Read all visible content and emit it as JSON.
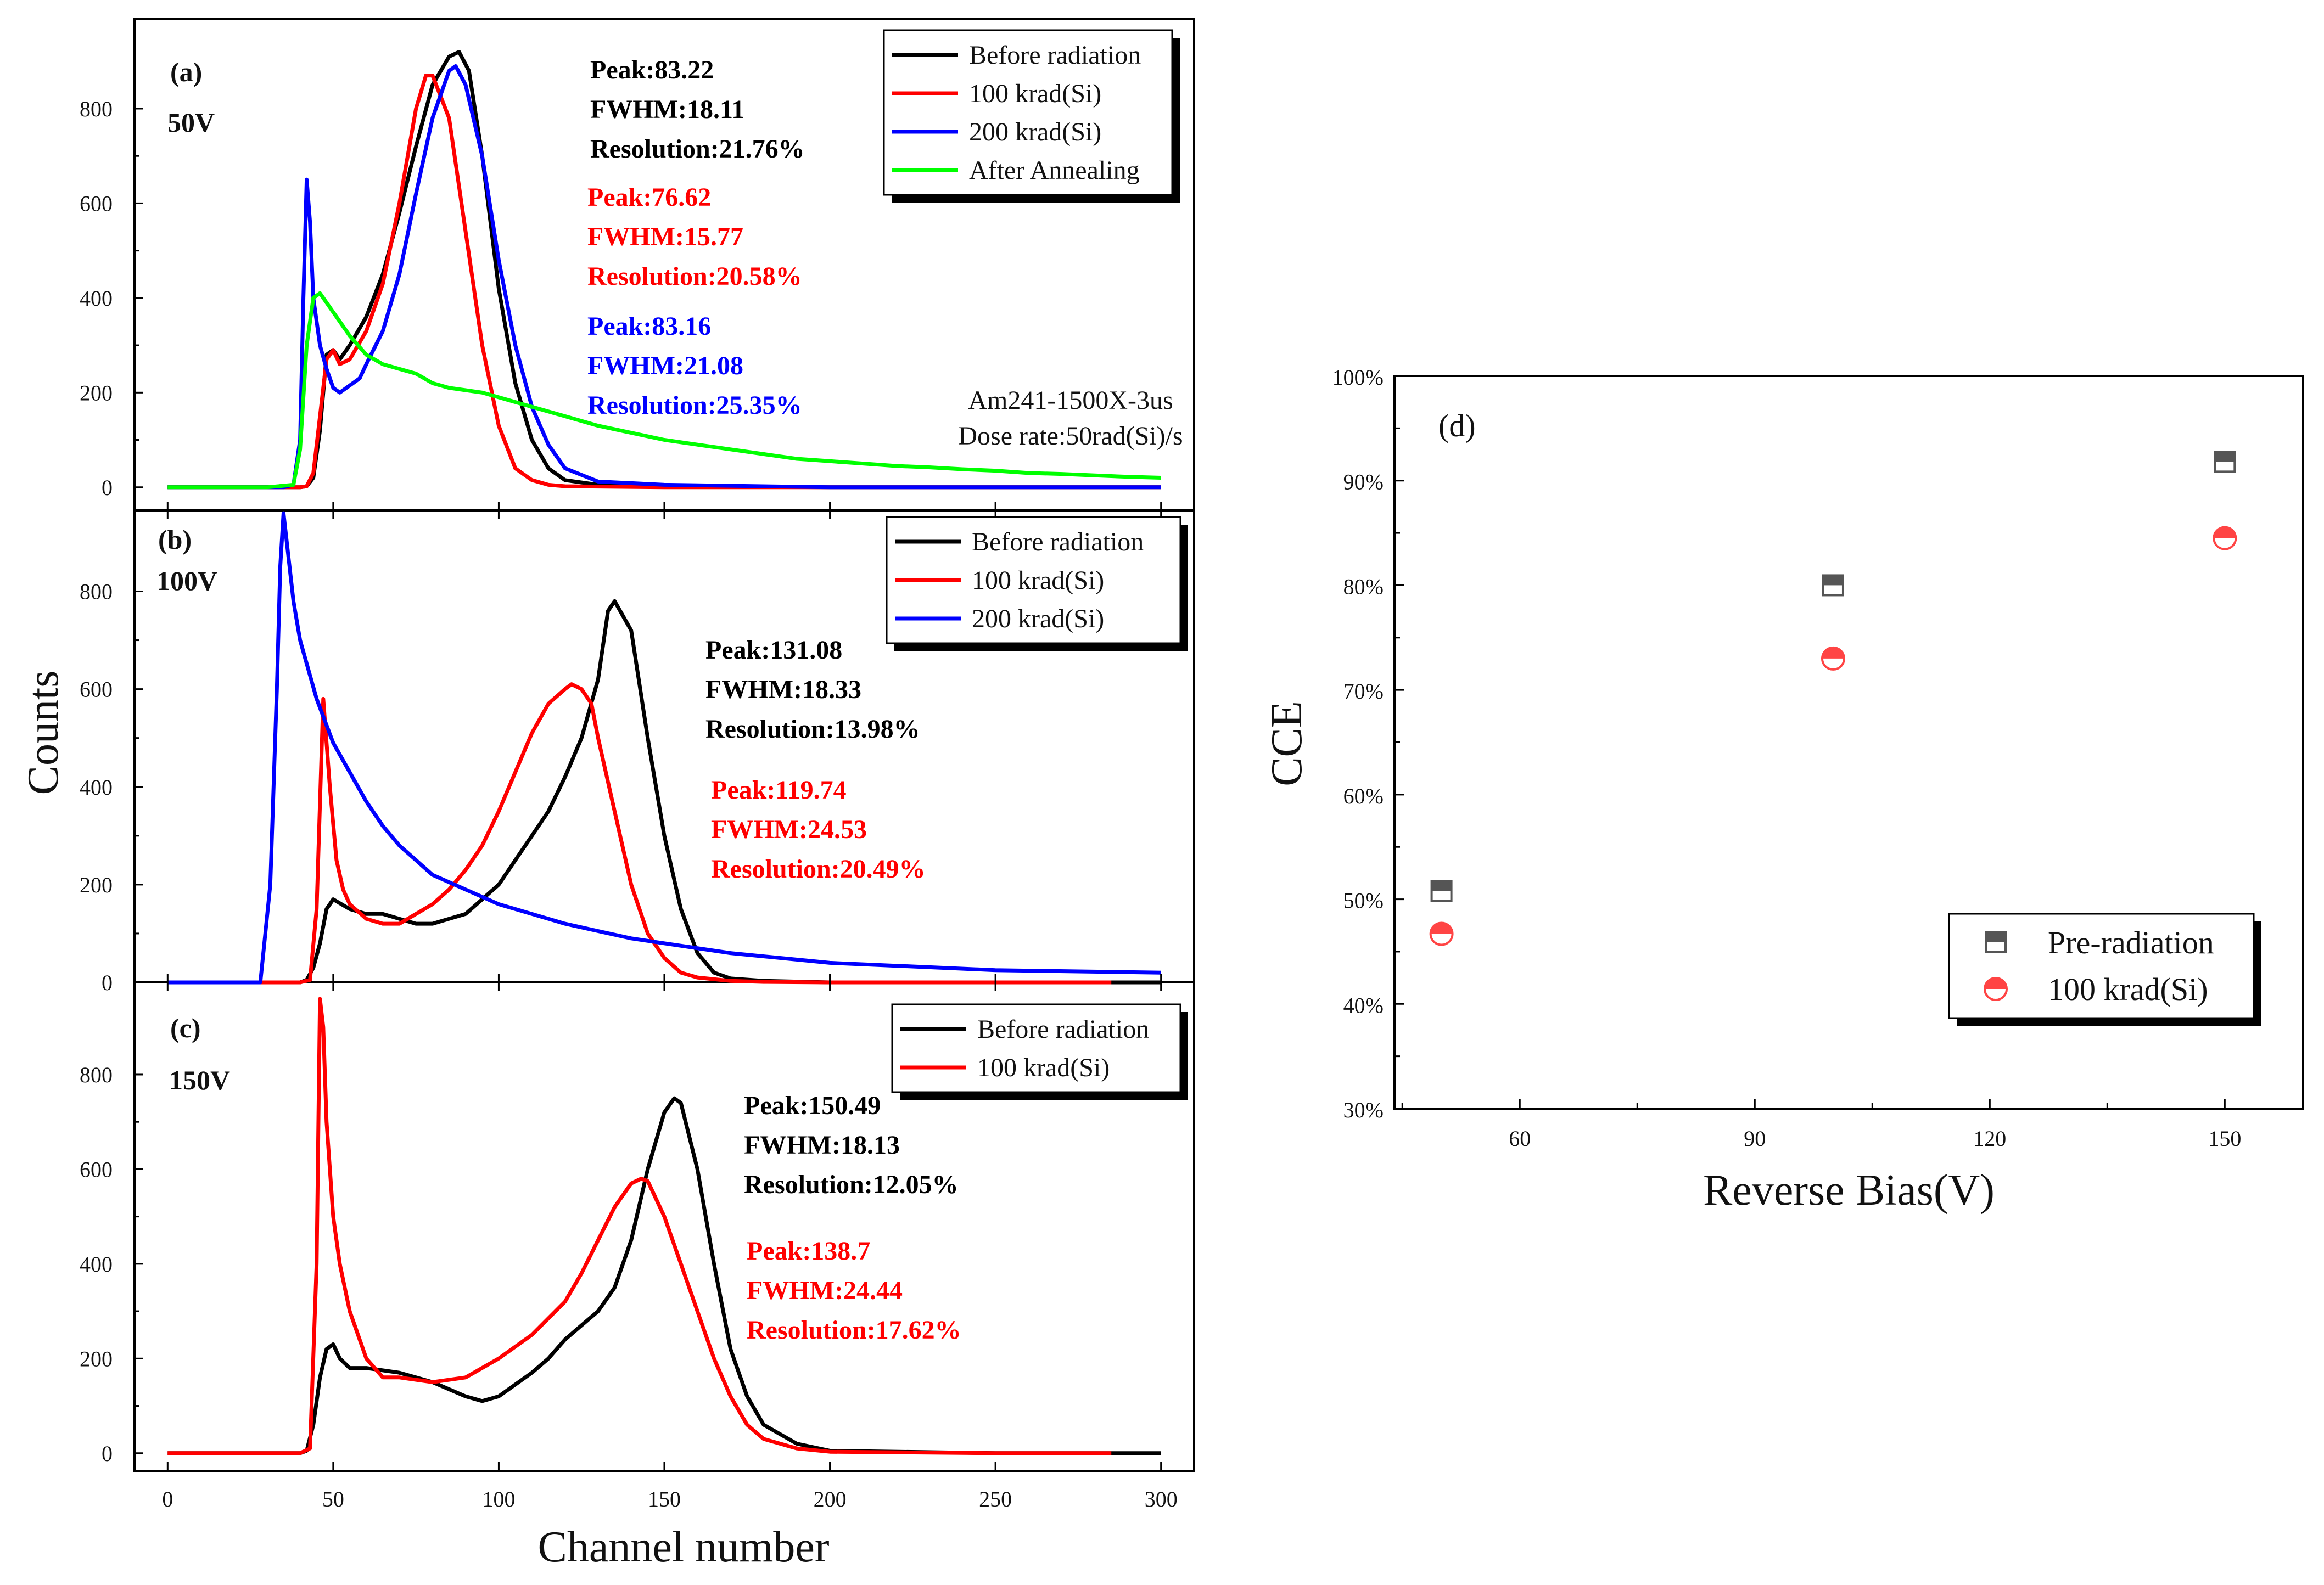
{
  "colors": {
    "black": "#000000",
    "red": "#ff0000",
    "blue": "#0000ff",
    "green": "#00ff00",
    "gray": "#555555",
    "pink": "#ff4444"
  },
  "chart_data": [
    {
      "panel": "a",
      "type": "line",
      "panel_label": "(a)",
      "voltage": "50V",
      "x_ticks": [
        "0",
        "50",
        "100",
        "150",
        "200",
        "250",
        "300"
      ],
      "y_ticks": [
        "0",
        "200",
        "400",
        "600",
        "800"
      ],
      "xlim": [
        -10,
        310
      ],
      "ylim": [
        -20,
        960
      ],
      "legend": [
        "Before radiation",
        "100 krad(Si)",
        "200 krad(Si)",
        "After Annealing"
      ],
      "annotation": [
        "Am241-1500X-3us",
        "Dose rate:50rad(Si)/s"
      ],
      "stats": [
        {
          "color": "black",
          "peak": "Peak:83.22",
          "fwhm": "FWHM:18.11",
          "res": "Resolution:21.76%"
        },
        {
          "color": "red",
          "peak": "Peak:76.62",
          "fwhm": "FWHM:15.77",
          "res": "Resolution:20.58%"
        },
        {
          "color": "blue",
          "peak": "Peak:83.16",
          "fwhm": "FWHM:21.08",
          "res": "Resolution:25.35%"
        }
      ],
      "series": [
        {
          "name": "Before radiation",
          "color": "black",
          "x": [
            0,
            30,
            40,
            42,
            44,
            46,
            48,
            50,
            52,
            55,
            60,
            65,
            70,
            75,
            80,
            85,
            88,
            91,
            95,
            100,
            105,
            110,
            115,
            120,
            130,
            150,
            200,
            250,
            300
          ],
          "y": [
            0,
            0,
            0,
            2,
            20,
            120,
            280,
            290,
            270,
            300,
            360,
            450,
            580,
            720,
            850,
            910,
            920,
            880,
            700,
            420,
            220,
            100,
            40,
            15,
            5,
            2,
            0,
            0,
            0
          ]
        },
        {
          "name": "100 krad(Si)",
          "color": "red",
          "x": [
            0,
            30,
            40,
            42,
            44,
            46,
            48,
            50,
            52,
            55,
            60,
            65,
            70,
            75,
            78,
            80,
            85,
            90,
            95,
            100,
            105,
            110,
            115,
            120,
            150,
            200,
            250,
            300
          ],
          "y": [
            0,
            0,
            0,
            2,
            30,
            150,
            270,
            290,
            260,
            270,
            330,
            430,
            600,
            800,
            870,
            870,
            780,
            540,
            300,
            130,
            40,
            15,
            5,
            2,
            0,
            0,
            0,
            0
          ]
        },
        {
          "name": "200 krad(Si)",
          "color": "blue",
          "x": [
            0,
            35,
            38,
            40,
            41,
            42,
            43,
            44,
            46,
            48,
            50,
            52,
            55,
            58,
            60,
            65,
            70,
            75,
            80,
            85,
            87,
            90,
            95,
            100,
            105,
            110,
            115,
            120,
            130,
            150,
            200,
            250,
            300
          ],
          "y": [
            0,
            0,
            5,
            100,
            400,
            650,
            560,
            400,
            300,
            250,
            210,
            200,
            215,
            230,
            260,
            330,
            450,
            620,
            780,
            880,
            890,
            850,
            700,
            480,
            300,
            170,
            90,
            40,
            12,
            5,
            0,
            0,
            0
          ]
        },
        {
          "name": "After Annealing",
          "color": "green",
          "x": [
            0,
            30,
            38,
            40,
            42,
            44,
            46,
            50,
            55,
            60,
            65,
            70,
            75,
            80,
            85,
            90,
            95,
            100,
            110,
            120,
            130,
            140,
            150,
            160,
            170,
            180,
            190,
            200,
            210,
            220,
            230,
            240,
            250,
            260,
            270,
            280,
            290,
            300
          ],
          "y": [
            0,
            0,
            5,
            80,
            300,
            400,
            410,
            370,
            320,
            280,
            260,
            250,
            240,
            220,
            210,
            205,
            200,
            190,
            170,
            150,
            130,
            115,
            100,
            90,
            80,
            70,
            60,
            55,
            50,
            45,
            42,
            38,
            35,
            30,
            28,
            25,
            22,
            20
          ]
        }
      ]
    },
    {
      "panel": "b",
      "type": "line",
      "panel_label": "(b)",
      "voltage": "100V",
      "x_ticks": [
        "0",
        "50",
        "100",
        "150",
        "200",
        "250",
        "300"
      ],
      "y_ticks": [
        "0",
        "200",
        "400",
        "600",
        "800"
      ],
      "xlim": [
        -10,
        310
      ],
      "ylim": [
        0,
        960
      ],
      "legend": [
        "Before radiation",
        "100 krad(Si)",
        "200 krad(Si)"
      ],
      "stats": [
        {
          "color": "black",
          "peak": "Peak:131.08",
          "fwhm": "FWHM:18.33",
          "res": "Resolution:13.98%"
        },
        {
          "color": "red",
          "peak": "Peak:119.74",
          "fwhm": "FWHM:24.53",
          "res": "Resolution:20.49%"
        }
      ],
      "series": [
        {
          "name": "Before radiation",
          "color": "black",
          "x": [
            0,
            40,
            42,
            44,
            46,
            48,
            50,
            55,
            60,
            65,
            70,
            75,
            80,
            85,
            90,
            95,
            100,
            105,
            110,
            115,
            120,
            125,
            130,
            133,
            135,
            140,
            145,
            150,
            155,
            160,
            165,
            170,
            180,
            200,
            250,
            300
          ],
          "y": [
            0,
            0,
            5,
            30,
            80,
            150,
            170,
            150,
            140,
            140,
            130,
            120,
            120,
            130,
            140,
            170,
            200,
            250,
            300,
            350,
            420,
            500,
            620,
            760,
            780,
            720,
            500,
            300,
            150,
            60,
            20,
            8,
            3,
            0,
            0,
            0
          ]
        },
        {
          "name": "100 krad(Si)",
          "color": "red",
          "x": [
            0,
            40,
            43,
            45,
            47,
            49,
            51,
            53,
            55,
            60,
            65,
            70,
            75,
            80,
            85,
            90,
            95,
            100,
            105,
            110,
            115,
            120,
            122,
            125,
            128,
            130,
            135,
            140,
            145,
            150,
            155,
            160,
            170,
            180,
            200,
            250,
            285
          ],
          "y": [
            0,
            0,
            5,
            150,
            580,
            400,
            250,
            190,
            160,
            130,
            120,
            120,
            140,
            160,
            190,
            230,
            280,
            350,
            430,
            510,
            570,
            600,
            610,
            600,
            570,
            500,
            350,
            200,
            100,
            50,
            20,
            10,
            3,
            1,
            0,
            0,
            0
          ]
        },
        {
          "name": "200 krad(Si)",
          "color": "blue",
          "x": [
            0,
            28,
            31,
            33,
            34,
            35,
            36,
            38,
            40,
            45,
            50,
            55,
            60,
            65,
            70,
            75,
            80,
            90,
            100,
            110,
            120,
            130,
            140,
            150,
            170,
            200,
            250,
            300
          ],
          "y": [
            0,
            0,
            200,
            600,
            850,
            960,
            900,
            780,
            700,
            580,
            490,
            430,
            370,
            320,
            280,
            250,
            220,
            190,
            160,
            140,
            120,
            105,
            90,
            80,
            60,
            40,
            25,
            20
          ]
        }
      ]
    },
    {
      "panel": "c",
      "type": "line",
      "panel_label": "(c)",
      "voltage": "150V",
      "x_ticks": [
        "0",
        "50",
        "100",
        "150",
        "200",
        "250",
        "300"
      ],
      "y_ticks": [
        "0",
        "200",
        "400",
        "600",
        "800"
      ],
      "xlim": [
        -10,
        310
      ],
      "ylim": [
        -20,
        960
      ],
      "legend": [
        "Before radiation",
        "100 krad(Si)"
      ],
      "stats": [
        {
          "color": "black",
          "peak": "Peak:150.49",
          "fwhm": "FWHM:18.13",
          "res": "Resolution:12.05%"
        },
        {
          "color": "red",
          "peak": "Peak:138.7",
          "fwhm": "FWHM:24.44",
          "res": "Resolution:17.62%"
        }
      ],
      "series": [
        {
          "name": "Before radiation",
          "color": "black",
          "x": [
            0,
            40,
            42,
            44,
            46,
            48,
            50,
            52,
            55,
            60,
            70,
            80,
            90,
            95,
            100,
            110,
            115,
            120,
            125,
            130,
            135,
            140,
            145,
            150,
            153,
            155,
            160,
            165,
            170,
            175,
            180,
            190,
            200,
            250,
            300
          ],
          "y": [
            0,
            0,
            5,
            60,
            160,
            220,
            230,
            200,
            180,
            180,
            170,
            150,
            120,
            110,
            120,
            170,
            200,
            240,
            270,
            300,
            350,
            450,
            600,
            720,
            750,
            740,
            600,
            400,
            220,
            120,
            60,
            20,
            5,
            0,
            0
          ]
        },
        {
          "name": "100 krad(Si)",
          "color": "red",
          "x": [
            0,
            40,
            43,
            45,
            46,
            47,
            48,
            50,
            52,
            55,
            60,
            65,
            70,
            80,
            90,
            100,
            110,
            120,
            125,
            130,
            135,
            140,
            143,
            145,
            150,
            155,
            160,
            165,
            170,
            175,
            180,
            190,
            200,
            250,
            285
          ],
          "y": [
            0,
            0,
            10,
            400,
            960,
            900,
            700,
            500,
            400,
            300,
            200,
            160,
            160,
            150,
            160,
            200,
            250,
            320,
            380,
            450,
            520,
            570,
            580,
            575,
            500,
            400,
            300,
            200,
            120,
            60,
            30,
            10,
            3,
            0,
            0
          ]
        }
      ]
    },
    {
      "panel": "d",
      "type": "scatter",
      "panel_label": "(d)",
      "xlabel": "Reverse Bias(V)",
      "ylabel": "CCE",
      "x_ticks": [
        "60",
        "90",
        "120",
        "150"
      ],
      "y_ticks": [
        "30%",
        "40%",
        "50%",
        "60%",
        "70%",
        "80%",
        "90%",
        "100%"
      ],
      "xlim": [
        44,
        160
      ],
      "ylim": [
        30,
        100
      ],
      "series": [
        {
          "name": "Pre-radiation",
          "marker": "half-square",
          "color": "gray",
          "x": [
            50,
            100,
            150
          ],
          "y": [
            50.8,
            80.0,
            91.8
          ]
        },
        {
          "name": "100 krad(Si)",
          "marker": "half-circle",
          "color": "pink",
          "x": [
            50,
            100,
            150
          ],
          "y": [
            46.7,
            73.0,
            84.5
          ]
        }
      ]
    }
  ],
  "shared": {
    "xlabel": "Channel number",
    "ylabel": "Counts"
  }
}
